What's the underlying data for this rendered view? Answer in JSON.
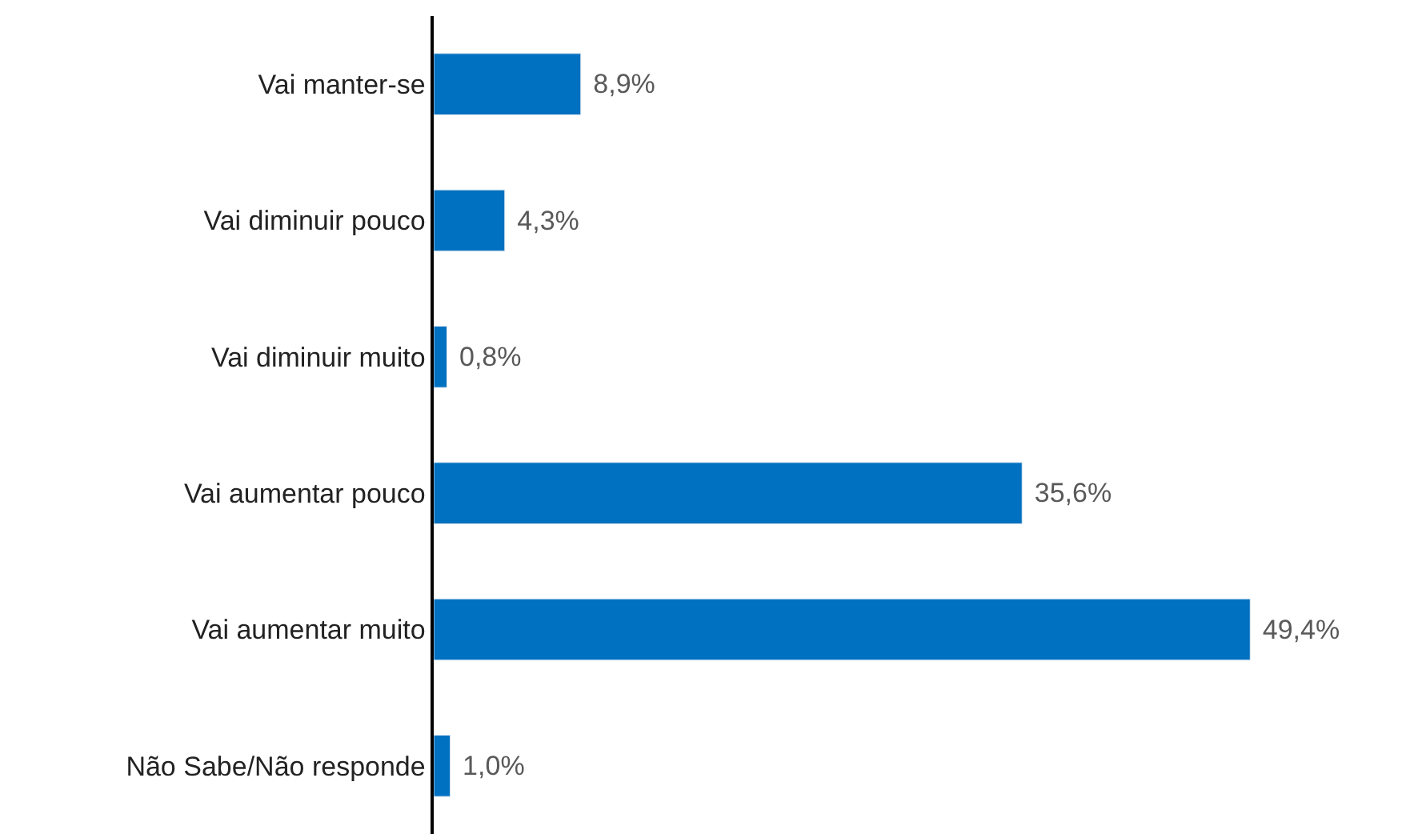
{
  "chart_data": {
    "type": "bar",
    "orientation": "horizontal",
    "categories": [
      "Vai manter-se",
      "Vai diminuir pouco",
      "Vai diminuir muito",
      "Vai aumentar pouco",
      "Vai aumentar muito",
      "Não Sabe/Não responde"
    ],
    "values": [
      8.9,
      4.3,
      0.8,
      35.6,
      49.4,
      1.0
    ],
    "value_labels": [
      "8,9%",
      "4,3%",
      "0,8%",
      "35,6%",
      "49,4%",
      "1,0%"
    ],
    "color": "#0070c0",
    "legend": false,
    "tick_labels": "y"
  }
}
